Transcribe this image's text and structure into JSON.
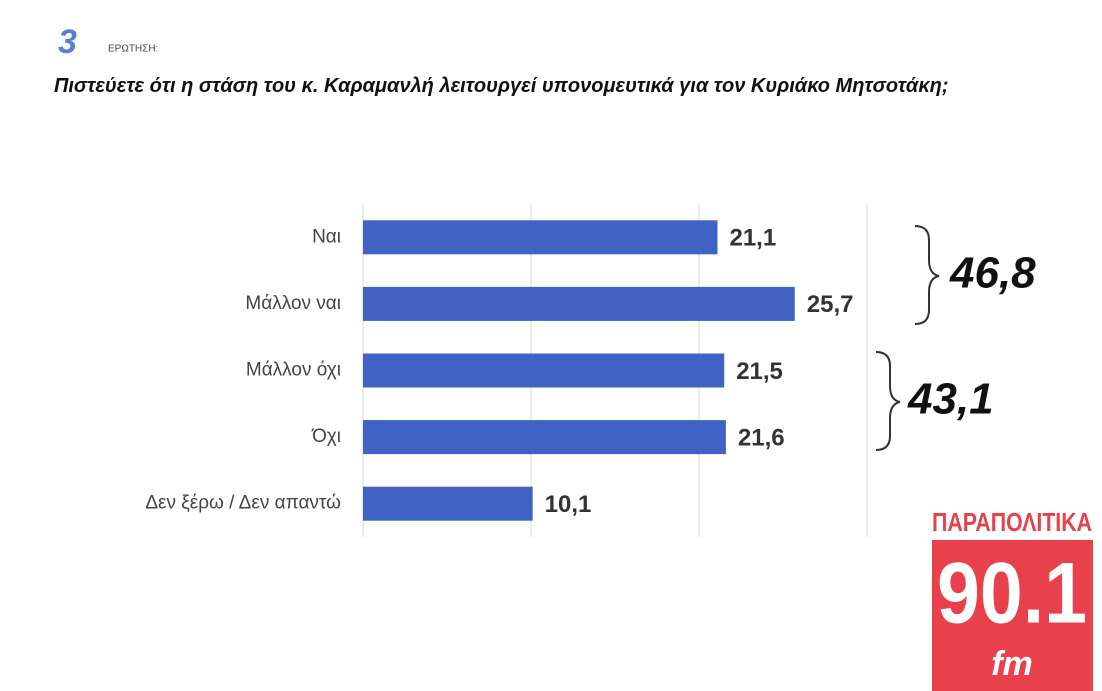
{
  "header": {
    "number": "3",
    "label": "ΕΡΩΤΗΣΗ:"
  },
  "chart_data": {
    "type": "hbar",
    "title": "Πιστεύετε ότι η στάση του κ. Καραμανλή λειτουργεί υπονομευτικά για τον Κυριάκο Μητσοτάκη;",
    "categories": [
      "Ναι",
      "Μάλλον ναι",
      "Μάλλον όχι",
      "Όχι",
      "Δεν ξέρω / Δεν απαντώ"
    ],
    "values": [
      21.1,
      25.7,
      21.5,
      21.6,
      10.1
    ],
    "value_labels": [
      "21,1",
      "25,7",
      "21,5",
      "21,6",
      "10,1"
    ],
    "color": "#3f62c4",
    "xlim": [
      0,
      30
    ],
    "xticks": [
      0,
      10,
      20,
      30
    ],
    "grid": true,
    "annotations": [
      "46,8",
      "43,1"
    ]
  },
  "logo": {
    "top": "ΠΑΡΑΠΟΛΙΤΙΚΑ",
    "main": "90.1",
    "sub": "fm"
  }
}
